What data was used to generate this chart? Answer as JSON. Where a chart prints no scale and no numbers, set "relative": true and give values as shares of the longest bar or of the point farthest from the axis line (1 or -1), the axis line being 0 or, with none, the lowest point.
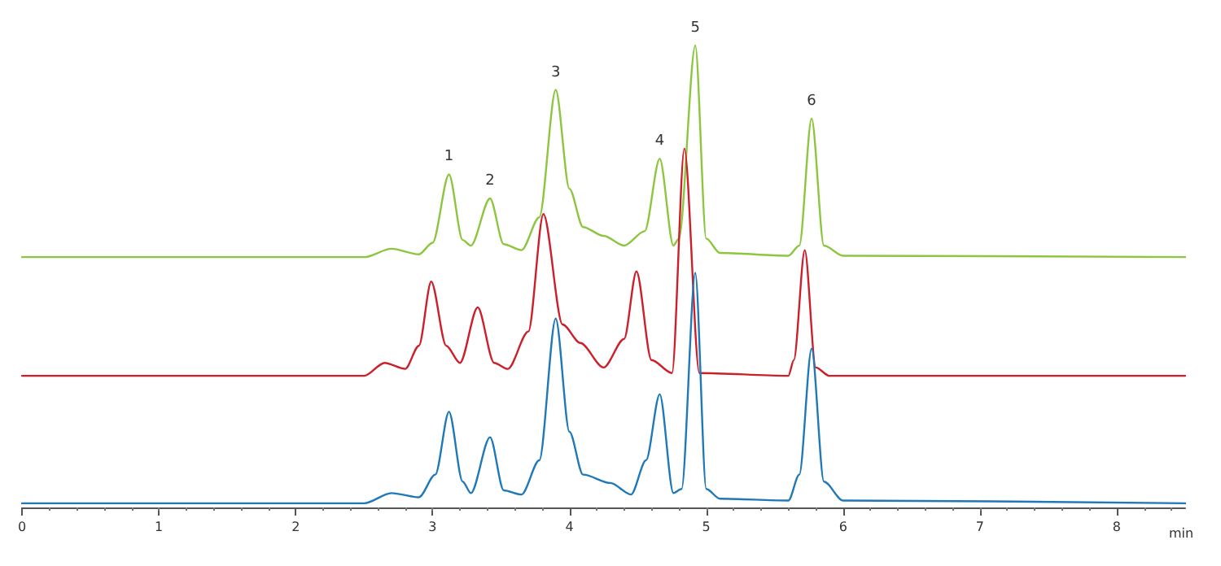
{
  "chart_data": {
    "type": "line",
    "relative": true,
    "xlabel": "min",
    "xlim": [
      0,
      8.5
    ],
    "xticks": [
      0,
      1,
      2,
      3,
      4,
      5,
      6,
      7,
      8
    ],
    "tick_labels": "x",
    "grid": false,
    "marker": "none",
    "line_style": "solid",
    "series": [
      {
        "color": "#8cc63e",
        "x": [
          0,
          2.5,
          2.7,
          2.9,
          3.0,
          3.12,
          3.22,
          3.28,
          3.42,
          3.52,
          3.65,
          3.78,
          3.9,
          4.0,
          4.1,
          4.25,
          4.4,
          4.55,
          4.66,
          4.76,
          4.8,
          4.92,
          5.0,
          5.1,
          5.6,
          5.68,
          5.77,
          5.86,
          6.0,
          8.5
        ],
        "values": [
          0.542,
          0.542,
          0.56,
          0.548,
          0.573,
          0.721,
          0.579,
          0.567,
          0.669,
          0.57,
          0.557,
          0.628,
          0.904,
          0.69,
          0.607,
          0.588,
          0.567,
          0.598,
          0.755,
          0.567,
          0.582,
          1.0,
          0.582,
          0.551,
          0.545,
          0.567,
          0.842,
          0.567,
          0.545,
          0.542
        ]
      },
      {
        "color": "#cc1f2a",
        "x": [
          0,
          2.5,
          2.65,
          2.8,
          2.9,
          2.99,
          3.1,
          3.2,
          3.33,
          3.45,
          3.55,
          3.7,
          3.81,
          3.95,
          4.08,
          4.25,
          4.4,
          4.49,
          4.6,
          4.75,
          4.84,
          4.95,
          5.6,
          5.64,
          5.72,
          5.8,
          5.9,
          8.5
        ],
        "values": [
          0.285,
          0.285,
          0.313,
          0.3,
          0.35,
          0.489,
          0.35,
          0.313,
          0.433,
          0.313,
          0.3,
          0.381,
          0.635,
          0.396,
          0.356,
          0.303,
          0.365,
          0.511,
          0.319,
          0.291,
          0.777,
          0.291,
          0.285,
          0.319,
          0.557,
          0.303,
          0.285,
          0.285
        ]
      },
      {
        "color": "#1f78b8",
        "x": [
          0,
          2.5,
          2.7,
          2.9,
          3.02,
          3.12,
          3.22,
          3.28,
          3.42,
          3.52,
          3.65,
          3.78,
          3.9,
          4.0,
          4.1,
          4.3,
          4.45,
          4.56,
          4.66,
          4.76,
          4.82,
          4.92,
          5.0,
          5.1,
          5.6,
          5.68,
          5.77,
          5.86,
          6.0,
          8.5
        ],
        "values": [
          0.009,
          0.009,
          0.031,
          0.022,
          0.071,
          0.207,
          0.056,
          0.031,
          0.152,
          0.037,
          0.028,
          0.102,
          0.409,
          0.164,
          0.071,
          0.053,
          0.028,
          0.102,
          0.245,
          0.031,
          0.04,
          0.508,
          0.04,
          0.019,
          0.015,
          0.071,
          0.344,
          0.056,
          0.015,
          0.009
        ]
      }
    ],
    "annotations": [
      {
        "text": "1",
        "x": 3.12,
        "y": 0.721
      },
      {
        "text": "2",
        "x": 3.42,
        "y": 0.669
      },
      {
        "text": "3",
        "x": 3.9,
        "y": 0.904
      },
      {
        "text": "4",
        "x": 4.66,
        "y": 0.755
      },
      {
        "text": "5",
        "x": 4.92,
        "y": 1.0
      },
      {
        "text": "6",
        "x": 5.77,
        "y": 0.842
      }
    ]
  }
}
